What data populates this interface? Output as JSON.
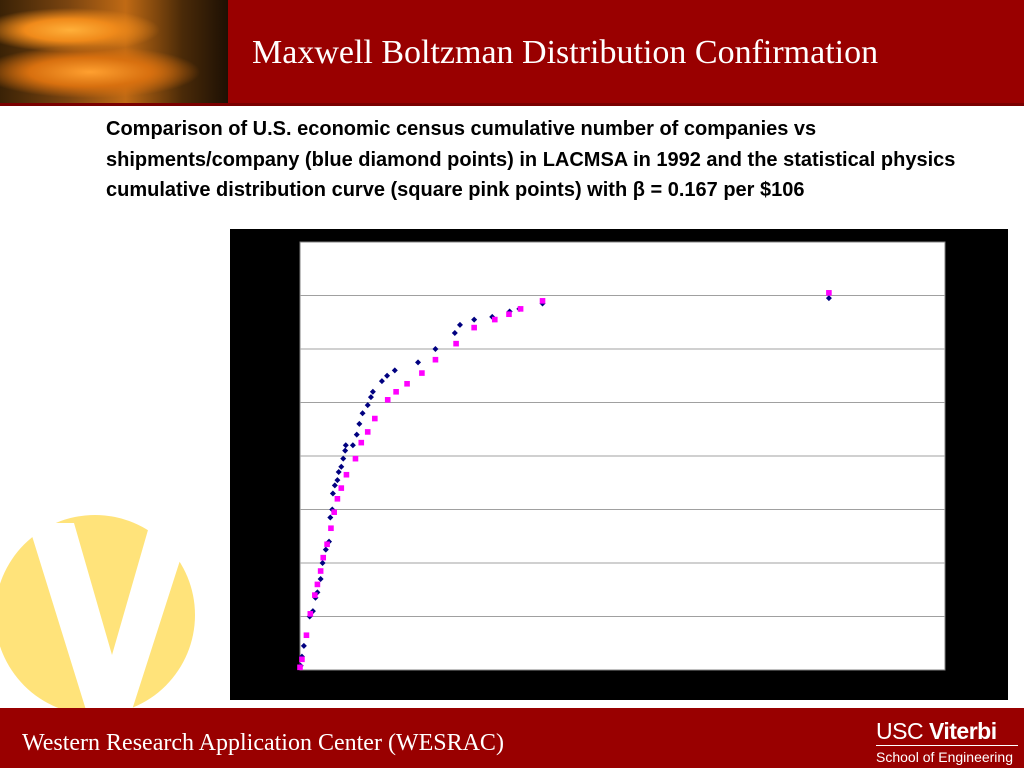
{
  "header": {
    "title": "Maxwell Boltzman Distribution Confirmation"
  },
  "caption": "Comparison of U.S. economic census cumulative number of companies vs shipments/company (blue diamond points) in LACMSA in 1992 and the statistical physics cumulative distribution curve (square pink points) with β = 0.167 per  $106",
  "footer": {
    "text": "Western Research Application Center (WESRAC)",
    "logo_usc": "USC",
    "logo_viterbi": "Viterbi",
    "logo_school": "School of Engineering"
  },
  "colors": {
    "brand_red": "#990000",
    "census_series": "#000080",
    "physics_series": "#FF00FF",
    "logo_v": "#FFE37A"
  },
  "icons": [
    "header-photo-image",
    "viterbi-v-logo-icon",
    "usc-viterbi-logo"
  ],
  "chart_data": {
    "type": "scatter",
    "title": "",
    "xlabel": "",
    "ylabel": "",
    "xlim": [
      0,
      100
    ],
    "ylim": [
      0,
      8
    ],
    "grid": {
      "horizontal": true,
      "vertical": false
    },
    "tick_labels_visible": false,
    "series": [
      {
        "marker": "diamond",
        "color": "#000080",
        "points": [
          [
            0.1,
            0.08
          ],
          [
            0.3,
            0.25
          ],
          [
            0.6,
            0.45
          ],
          [
            1.5,
            1.0
          ],
          [
            2.0,
            1.1
          ],
          [
            2.4,
            1.35
          ],
          [
            2.7,
            1.45
          ],
          [
            3.2,
            1.7
          ],
          [
            3.5,
            2.0
          ],
          [
            4.0,
            2.25
          ],
          [
            4.5,
            2.4
          ],
          [
            4.7,
            2.85
          ],
          [
            5.0,
            3.0
          ],
          [
            5.1,
            3.3
          ],
          [
            5.4,
            3.45
          ],
          [
            5.8,
            3.55
          ],
          [
            6.0,
            3.7
          ],
          [
            6.4,
            3.8
          ],
          [
            6.7,
            3.95
          ],
          [
            7.0,
            4.1
          ],
          [
            7.1,
            4.2
          ],
          [
            8.2,
            4.2
          ],
          [
            8.8,
            4.4
          ],
          [
            9.2,
            4.6
          ],
          [
            9.7,
            4.8
          ],
          [
            10.5,
            4.95
          ],
          [
            11.0,
            5.1
          ],
          [
            11.3,
            5.2
          ],
          [
            12.7,
            5.4
          ],
          [
            13.5,
            5.5
          ],
          [
            14.7,
            5.6
          ],
          [
            18.3,
            5.75
          ],
          [
            21.0,
            6.0
          ],
          [
            24.0,
            6.3
          ],
          [
            24.8,
            6.45
          ],
          [
            27.0,
            6.55
          ],
          [
            29.8,
            6.6
          ],
          [
            32.5,
            6.7
          ],
          [
            34.0,
            6.75
          ],
          [
            37.6,
            6.85
          ],
          [
            82.0,
            6.95
          ]
        ]
      },
      {
        "marker": "square",
        "color": "#FF00FF",
        "points": [
          [
            0.0,
            0.05
          ],
          [
            0.3,
            0.2
          ],
          [
            1.0,
            0.65
          ],
          [
            1.6,
            1.05
          ],
          [
            2.3,
            1.4
          ],
          [
            2.7,
            1.6
          ],
          [
            3.2,
            1.85
          ],
          [
            3.6,
            2.1
          ],
          [
            4.2,
            2.35
          ],
          [
            4.8,
            2.65
          ],
          [
            5.3,
            2.95
          ],
          [
            5.8,
            3.2
          ],
          [
            6.4,
            3.4
          ],
          [
            7.2,
            3.65
          ],
          [
            8.6,
            3.95
          ],
          [
            9.5,
            4.25
          ],
          [
            10.5,
            4.45
          ],
          [
            11.6,
            4.7
          ],
          [
            13.6,
            5.05
          ],
          [
            14.9,
            5.2
          ],
          [
            16.6,
            5.35
          ],
          [
            18.9,
            5.55
          ],
          [
            21.0,
            5.8
          ],
          [
            24.2,
            6.1
          ],
          [
            27.0,
            6.4
          ],
          [
            30.2,
            6.55
          ],
          [
            32.4,
            6.65
          ],
          [
            34.2,
            6.75
          ],
          [
            37.6,
            6.9
          ],
          [
            82.0,
            7.05
          ]
        ]
      }
    ]
  }
}
